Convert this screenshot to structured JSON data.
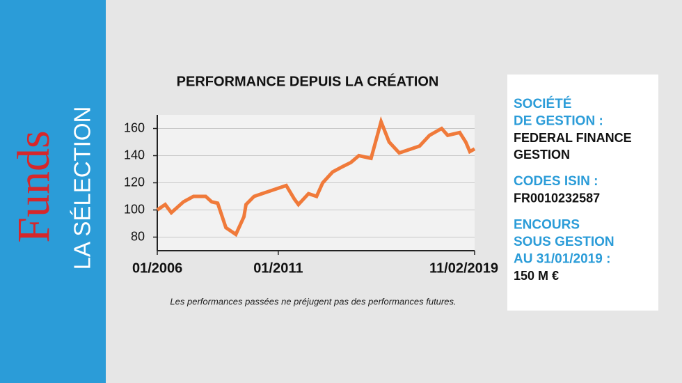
{
  "sidebar": {
    "brand": "Funds",
    "subtitle": "LA SÉLECTION"
  },
  "chart_data": {
    "type": "line",
    "title": "PERFORMANCE DEPUIS LA CRÉATION",
    "note": "Les performances passées ne préjugent pas des performances futures.",
    "x": [
      "01/2006",
      "05/2006",
      "08/2006",
      "02/2007",
      "07/2007",
      "01/2008",
      "04/2008",
      "07/2008",
      "11/2008",
      "04/2009",
      "08/2009",
      "09/2009",
      "01/2010",
      "05/2010",
      "01/2011",
      "05/2011",
      "09/2011",
      "11/2011",
      "04/2012",
      "08/2012",
      "11/2012",
      "04/2013",
      "09/2013",
      "01/2014",
      "05/2014",
      "11/2014",
      "04/2015",
      "08/2015",
      "01/2016",
      "07/2016",
      "11/2016",
      "04/2017",
      "10/2017",
      "01/2018",
      "07/2018",
      "10/2018",
      "12/2018",
      "11/02/2019"
    ],
    "series": [
      {
        "name": "Performance",
        "color": "#f07a3a",
        "values": [
          100,
          104,
          98,
          106,
          110,
          110,
          106,
          105,
          87,
          82,
          95,
          104,
          110,
          112,
          116,
          118,
          108,
          104,
          112,
          110,
          120,
          128,
          132,
          135,
          140,
          138,
          165,
          150,
          142,
          145,
          147,
          155,
          160,
          155,
          157,
          150,
          143,
          145
        ]
      }
    ],
    "xticks": [
      "01/2006",
      "01/2011",
      "11/02/2019"
    ],
    "ylim": [
      70,
      170
    ],
    "yticks": [
      80,
      100,
      120,
      140,
      160
    ],
    "grid": true
  },
  "info": {
    "items": [
      {
        "label": [
          "SOCIÉTÉ",
          "DE GESTION :"
        ],
        "value": [
          "FEDERAL FINANCE",
          "GESTION"
        ]
      },
      {
        "label": [
          "CODES ISIN :"
        ],
        "value": [
          "FR0010232587"
        ]
      },
      {
        "label": [
          "ENCOURS",
          "SOUS GESTION",
          "AU 31/01/2019 :"
        ],
        "value": [
          "150 M €"
        ]
      }
    ]
  }
}
